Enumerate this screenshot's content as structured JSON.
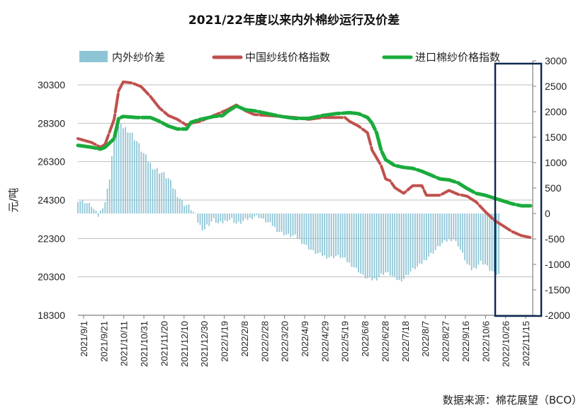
{
  "chart_data": {
    "type": "bar+line",
    "title": "2021/22年度以来内外棉纱运行及价差",
    "ylabel_left": "元/吨",
    "source": "数据来源：棉花展望（BCO）",
    "left_axis": {
      "ylim": [
        18300,
        30300
      ],
      "ticks": [
        18300,
        20300,
        22300,
        24300,
        26300,
        28300,
        30300
      ]
    },
    "right_axis": {
      "ylim": [
        -2000,
        3000
      ],
      "ticks": [
        -2000,
        -1500,
        -1000,
        -500,
        0,
        500,
        1000,
        1500,
        2000,
        2500,
        3000
      ]
    },
    "x_ticks": [
      "2021/9/1",
      "2021/9/21",
      "2021/10/11",
      "2021/10/31",
      "2021/11/20",
      "2021/12/10",
      "2021/12/30",
      "2022/1/19",
      "2022/2/8",
      "2022/2/28",
      "2022/3/20",
      "2022/4/9",
      "2022/4/29",
      "2022/5/19",
      "2022/6/8",
      "2022/6/28",
      "2022/7/18",
      "2022/8/7",
      "2022/8/27",
      "2022/9/16",
      "2022/10/6",
      "2022/10/26",
      "2022/11/15"
    ],
    "grid": "horizontal",
    "legend_position": "top",
    "series": [
      {
        "name": "内外纱价差",
        "kind": "bar",
        "axis": "right",
        "color": "#8ec5d6",
        "points": [
          [
            0,
            260
          ],
          [
            3,
            230
          ],
          [
            6,
            150
          ],
          [
            9,
            -50
          ],
          [
            12,
            230
          ],
          [
            14,
            700
          ],
          [
            16,
            1550
          ],
          [
            18,
            1700
          ],
          [
            20,
            1700
          ],
          [
            22,
            1650
          ],
          [
            24,
            1550
          ],
          [
            26,
            1420
          ],
          [
            28,
            1250
          ],
          [
            30,
            1100
          ],
          [
            32,
            970
          ],
          [
            34,
            880
          ],
          [
            36,
            830
          ],
          [
            38,
            770
          ],
          [
            40,
            680
          ],
          [
            42,
            520
          ],
          [
            44,
            380
          ],
          [
            46,
            230
          ],
          [
            48,
            160
          ],
          [
            50,
            100
          ],
          [
            52,
            -60
          ],
          [
            54,
            -250
          ],
          [
            56,
            -300
          ],
          [
            58,
            -200
          ],
          [
            60,
            -120
          ],
          [
            62,
            -200
          ],
          [
            64,
            -180
          ],
          [
            66,
            -120
          ],
          [
            68,
            -110
          ],
          [
            70,
            -200
          ],
          [
            72,
            -180
          ],
          [
            74,
            -130
          ],
          [
            76,
            -100
          ],
          [
            78,
            -50
          ],
          [
            80,
            -60
          ],
          [
            82,
            -130
          ],
          [
            84,
            -180
          ],
          [
            86,
            -230
          ],
          [
            88,
            -330
          ],
          [
            90,
            -380
          ],
          [
            92,
            -420
          ],
          [
            94,
            -440
          ],
          [
            96,
            -450
          ],
          [
            98,
            -520
          ],
          [
            100,
            -600
          ],
          [
            102,
            -680
          ],
          [
            104,
            -750
          ],
          [
            106,
            -790
          ],
          [
            108,
            -820
          ],
          [
            110,
            -850
          ],
          [
            112,
            -860
          ],
          [
            114,
            -840
          ],
          [
            116,
            -850
          ],
          [
            118,
            -900
          ],
          [
            120,
            -980
          ],
          [
            122,
            -1050
          ],
          [
            124,
            -1130
          ],
          [
            126,
            -1230
          ],
          [
            128,
            -1280
          ],
          [
            130,
            -1300
          ],
          [
            132,
            -1280
          ],
          [
            134,
            -1200
          ],
          [
            136,
            -1160
          ],
          [
            138,
            -1200
          ],
          [
            140,
            -1270
          ],
          [
            142,
            -1320
          ],
          [
            144,
            -1280
          ],
          [
            146,
            -1180
          ],
          [
            148,
            -1100
          ],
          [
            150,
            -1050
          ],
          [
            152,
            -980
          ],
          [
            154,
            -880
          ],
          [
            156,
            -800
          ],
          [
            158,
            -720
          ],
          [
            160,
            -620
          ],
          [
            162,
            -560
          ],
          [
            164,
            -520
          ],
          [
            166,
            -500
          ],
          [
            168,
            -620
          ],
          [
            170,
            -800
          ],
          [
            172,
            -1000
          ],
          [
            174,
            -1100
          ],
          [
            176,
            -1050
          ],
          [
            178,
            -950
          ],
          [
            180,
            -1000
          ],
          [
            182,
            -1100
          ],
          [
            184,
            -1180
          ],
          [
            186,
            -1200
          ]
        ]
      },
      {
        "name": "中国纱线价格指数",
        "kind": "line",
        "axis": "left",
        "color": "#c0504d",
        "points": [
          [
            0,
            27500
          ],
          [
            6,
            27300
          ],
          [
            10,
            27050
          ],
          [
            12,
            27200
          ],
          [
            16,
            28500
          ],
          [
            18,
            30000
          ],
          [
            20,
            30450
          ],
          [
            24,
            30400
          ],
          [
            28,
            30200
          ],
          [
            32,
            29700
          ],
          [
            36,
            29100
          ],
          [
            40,
            28700
          ],
          [
            44,
            28500
          ],
          [
            48,
            28200
          ],
          [
            50,
            28300
          ],
          [
            54,
            28400
          ],
          [
            60,
            28700
          ],
          [
            64,
            28900
          ],
          [
            66,
            29000
          ],
          [
            70,
            29250
          ],
          [
            74,
            28950
          ],
          [
            78,
            28750
          ],
          [
            84,
            28700
          ],
          [
            90,
            28650
          ],
          [
            96,
            28600
          ],
          [
            102,
            28500
          ],
          [
            108,
            28600
          ],
          [
            114,
            28600
          ],
          [
            118,
            28600
          ],
          [
            120,
            28400
          ],
          [
            124,
            28150
          ],
          [
            128,
            27800
          ],
          [
            130,
            26900
          ],
          [
            134,
            26100
          ],
          [
            136,
            25400
          ],
          [
            138,
            25300
          ],
          [
            140,
            24950
          ],
          [
            144,
            24650
          ],
          [
            148,
            25050
          ],
          [
            152,
            25050
          ],
          [
            154,
            24550
          ],
          [
            160,
            24550
          ],
          [
            164,
            24800
          ],
          [
            168,
            24600
          ],
          [
            172,
            24500
          ],
          [
            176,
            24200
          ],
          [
            180,
            23700
          ],
          [
            184,
            23250
          ],
          [
            188,
            22950
          ],
          [
            192,
            22650
          ],
          [
            196,
            22450
          ],
          [
            200,
            22350
          ]
        ]
      },
      {
        "name": "进口棉纱价格指数",
        "kind": "line",
        "axis": "left",
        "color": "#1aab3c",
        "points": [
          [
            0,
            27150
          ],
          [
            6,
            27050
          ],
          [
            10,
            26950
          ],
          [
            12,
            27050
          ],
          [
            16,
            27500
          ],
          [
            18,
            28550
          ],
          [
            20,
            28650
          ],
          [
            26,
            28600
          ],
          [
            32,
            28600
          ],
          [
            36,
            28400
          ],
          [
            40,
            28150
          ],
          [
            44,
            28000
          ],
          [
            48,
            28000
          ],
          [
            50,
            28350
          ],
          [
            54,
            28500
          ],
          [
            60,
            28650
          ],
          [
            64,
            28700
          ],
          [
            66,
            28900
          ],
          [
            70,
            29200
          ],
          [
            74,
            29000
          ],
          [
            78,
            28950
          ],
          [
            84,
            28800
          ],
          [
            90,
            28650
          ],
          [
            96,
            28550
          ],
          [
            102,
            28550
          ],
          [
            108,
            28700
          ],
          [
            114,
            28800
          ],
          [
            120,
            28850
          ],
          [
            124,
            28800
          ],
          [
            128,
            28600
          ],
          [
            130,
            28300
          ],
          [
            132,
            27800
          ],
          [
            134,
            26900
          ],
          [
            136,
            26400
          ],
          [
            140,
            26100
          ],
          [
            144,
            26000
          ],
          [
            148,
            25950
          ],
          [
            152,
            25800
          ],
          [
            156,
            25600
          ],
          [
            160,
            25400
          ],
          [
            164,
            25350
          ],
          [
            168,
            25200
          ],
          [
            172,
            24900
          ],
          [
            176,
            24650
          ],
          [
            180,
            24550
          ],
          [
            184,
            24400
          ],
          [
            188,
            24250
          ],
          [
            192,
            24100
          ],
          [
            196,
            24000
          ],
          [
            200,
            24000
          ]
        ]
      }
    ],
    "highlight_box": "2022/10/26 — 2022/11/15"
  }
}
